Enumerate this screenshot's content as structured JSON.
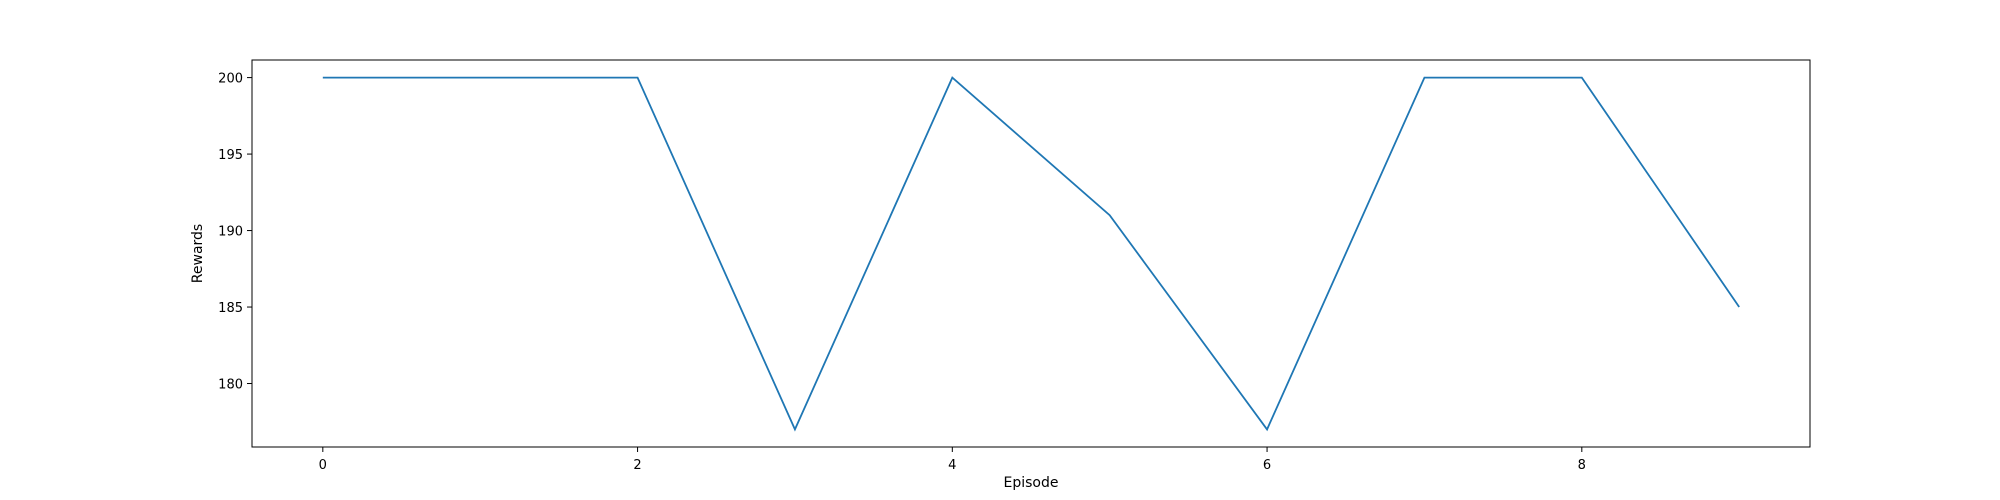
{
  "chart_data": {
    "type": "line",
    "title": "",
    "xlabel": "Episode",
    "ylabel": "Rewards",
    "xlim": [
      -0.45,
      9.45
    ],
    "ylim": [
      175.85,
      201.15
    ],
    "xticks": [
      0,
      2,
      4,
      6,
      8
    ],
    "yticks": [
      180,
      185,
      190,
      195,
      200
    ],
    "grid": false,
    "legend": "none",
    "series": [
      {
        "x": [
          0,
          1,
          2,
          3,
          4,
          5,
          6,
          7,
          8,
          9
        ],
        "values": [
          200,
          200,
          200,
          177,
          200,
          191,
          177,
          200,
          200,
          185
        ],
        "color": "#1f77b4"
      }
    ]
  }
}
